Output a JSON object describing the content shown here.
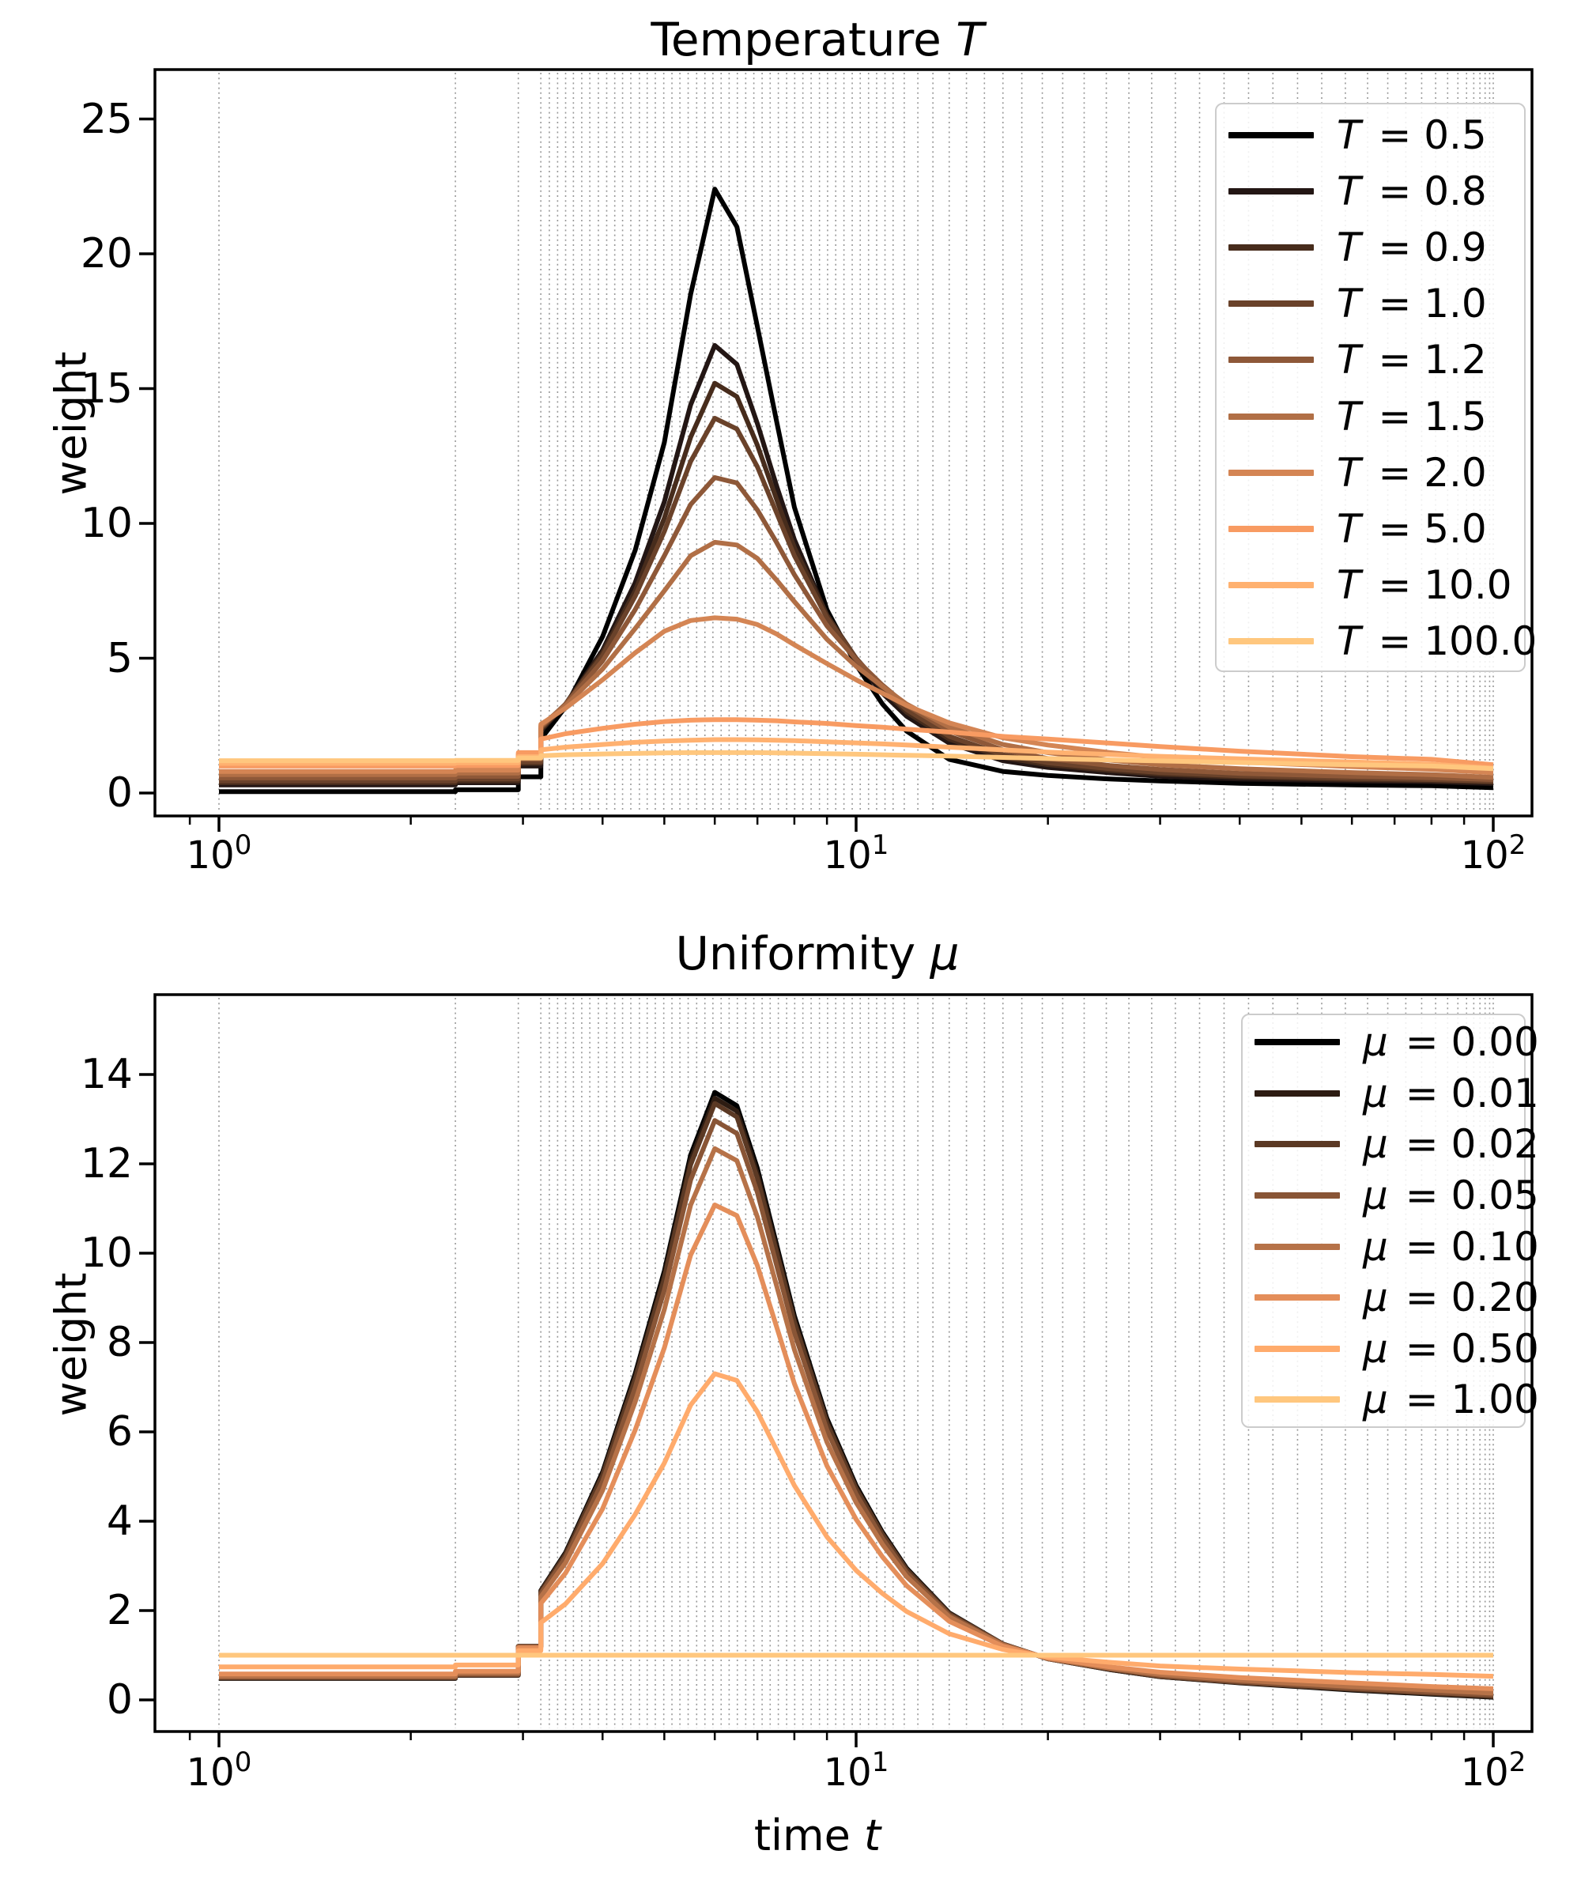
{
  "figure": {
    "background": "#ffffff",
    "grid_color": "#8c8c8c",
    "axis_color": "#000000"
  },
  "chart_data": [
    {
      "type": "line",
      "title_text": "Temperature",
      "title_var": "T",
      "ylabel": "weight",
      "x_scale": "log",
      "xlim": [
        0.79,
        112
      ],
      "ylim": [
        -0.85,
        26.8
      ],
      "grid": "on",
      "legend_position": "upper right",
      "yticks": [
        0,
        5,
        10,
        15,
        20,
        25
      ],
      "xticks": [
        {
          "value": 1,
          "label_base": "10",
          "label_exp": "0"
        },
        {
          "value": 10,
          "label_base": "10",
          "label_exp": "1"
        },
        {
          "value": 100,
          "label_base": "10",
          "label_exp": "2"
        }
      ],
      "x_minor_ticks": [
        0.9,
        2,
        3,
        4,
        5,
        6,
        7,
        8,
        9,
        20,
        30,
        40,
        50,
        60,
        70,
        80,
        90
      ],
      "grid_t": [
        1,
        2.35,
        2.95,
        3.2,
        3.3,
        3.4,
        3.5,
        3.6,
        3.71,
        3.82,
        3.94,
        4.06,
        4.18,
        4.3,
        4.43,
        4.57,
        4.7,
        4.84,
        4.99,
        5.14,
        5.29,
        5.45,
        5.62,
        5.79,
        5.96,
        6.14,
        6.32,
        6.51,
        6.71,
        6.91,
        7.12,
        7.33,
        7.55,
        7.78,
        8.01,
        8.25,
        8.5,
        8.76,
        9.02,
        9.29,
        9.57,
        9.86,
        10.15,
        10.46,
        10.77,
        11.1,
        11.43,
        11.9,
        12.5,
        13.2,
        14.0,
        14.9,
        15.9,
        17.0,
        18.2,
        19.6,
        21.1,
        22.8,
        24.7,
        26.8,
        29.1,
        31.7,
        34.6,
        37.8,
        41.3,
        45.1,
        49.3,
        53.8,
        58.6,
        63.5,
        68.3,
        72.9,
        77.2,
        81.2,
        84.8,
        88.0,
        90.8,
        93.2,
        95.3,
        97.1,
        98.7,
        100
      ],
      "t_samples": [
        1,
        2.35,
        2.35,
        2.95,
        2.95,
        3.2,
        3.2,
        3.5,
        4,
        4.5,
        5,
        5.5,
        6,
        6.5,
        7,
        7.5,
        8,
        9,
        10,
        11,
        12,
        14,
        17,
        20,
        25,
        30,
        40,
        60,
        80,
        100
      ],
      "series": [
        {
          "var": "T",
          "value": "0.5",
          "label": "T = 0.5",
          "color": "#000000",
          "weights": [
            0.05,
            0.05,
            0.12,
            0.12,
            0.6,
            0.6,
            2.0,
            3.2,
            5.8,
            9.0,
            13.0,
            18.5,
            22.4,
            21.0,
            17.3,
            13.8,
            10.6,
            6.8,
            4.75,
            3.3,
            2.3,
            1.25,
            0.8,
            0.65,
            0.52,
            0.45,
            0.36,
            0.3,
            0.27,
            0.2
          ]
        },
        {
          "var": "T",
          "value": "0.8",
          "label": "T = 0.8",
          "color": "#231614",
          "weights": [
            0.3,
            0.3,
            0.38,
            0.38,
            1.0,
            1.0,
            2.3,
            3.3,
            5.3,
            7.8,
            10.8,
            14.4,
            16.6,
            15.9,
            13.7,
            11.4,
            9.4,
            6.6,
            4.9,
            3.7,
            2.85,
            1.85,
            1.2,
            0.95,
            0.75,
            0.62,
            0.52,
            0.45,
            0.42,
            0.35
          ]
        },
        {
          "var": "T",
          "value": "0.9",
          "label": "T = 0.9",
          "color": "#472c1c",
          "weights": [
            0.38,
            0.38,
            0.45,
            0.45,
            1.1,
            1.1,
            2.35,
            3.3,
            5.2,
            7.5,
            10.2,
            13.2,
            15.2,
            14.7,
            12.9,
            10.9,
            9.1,
            6.6,
            5.0,
            3.85,
            3.0,
            2.0,
            1.32,
            1.05,
            0.84,
            0.7,
            0.59,
            0.5,
            0.46,
            0.4
          ]
        },
        {
          "var": "T",
          "value": "1.0",
          "label": "T = 1.0",
          "color": "#6a422a",
          "weights": [
            0.45,
            0.45,
            0.52,
            0.52,
            1.15,
            1.15,
            2.4,
            3.3,
            5.1,
            7.3,
            9.7,
            12.3,
            13.9,
            13.5,
            12.1,
            10.4,
            8.8,
            6.5,
            5.0,
            3.9,
            3.1,
            2.1,
            1.42,
            1.12,
            0.9,
            0.76,
            0.64,
            0.55,
            0.5,
            0.44
          ]
        },
        {
          "var": "T",
          "value": "1.2",
          "label": "T = 1.2",
          "color": "#8e5838",
          "weights": [
            0.56,
            0.56,
            0.62,
            0.62,
            1.25,
            1.25,
            2.45,
            3.3,
            4.9,
            6.8,
            8.8,
            10.7,
            11.7,
            11.5,
            10.5,
            9.3,
            8.1,
            6.2,
            4.95,
            4.0,
            3.25,
            2.3,
            1.6,
            1.28,
            1.02,
            0.87,
            0.73,
            0.62,
            0.57,
            0.5
          ]
        },
        {
          "var": "T",
          "value": "1.5",
          "label": "T = 1.5",
          "color": "#b16f46",
          "weights": [
            0.68,
            0.68,
            0.74,
            0.74,
            1.35,
            1.35,
            2.5,
            3.25,
            4.6,
            6.1,
            7.5,
            8.8,
            9.3,
            9.2,
            8.7,
            7.9,
            7.1,
            5.7,
            4.7,
            3.95,
            3.3,
            2.45,
            1.8,
            1.5,
            1.22,
            1.05,
            0.9,
            0.76,
            0.68,
            0.58
          ]
        },
        {
          "var": "T",
          "value": "2.0",
          "label": "T = 2.0",
          "color": "#d48554",
          "weights": [
            0.8,
            0.8,
            0.85,
            0.85,
            1.45,
            1.45,
            2.55,
            3.15,
            4.2,
            5.2,
            6.0,
            6.4,
            6.5,
            6.45,
            6.25,
            5.9,
            5.5,
            4.8,
            4.2,
            3.7,
            3.25,
            2.6,
            2.05,
            1.78,
            1.5,
            1.32,
            1.15,
            0.98,
            0.88,
            0.75
          ]
        },
        {
          "var": "T",
          "value": "5.0",
          "label": "T = 5.0",
          "color": "#f89b62",
          "weights": [
            1.0,
            1.0,
            1.02,
            1.02,
            1.5,
            1.5,
            2.0,
            2.2,
            2.4,
            2.55,
            2.65,
            2.7,
            2.72,
            2.72,
            2.7,
            2.68,
            2.64,
            2.58,
            2.5,
            2.44,
            2.37,
            2.26,
            2.1,
            2.0,
            1.85,
            1.72,
            1.55,
            1.35,
            1.25,
            1.05
          ]
        },
        {
          "var": "T",
          "value": "10.0",
          "label": "T = 10.0",
          "color": "#ffb170",
          "weights": [
            1.1,
            1.1,
            1.12,
            1.12,
            1.35,
            1.35,
            1.6,
            1.7,
            1.8,
            1.88,
            1.93,
            1.96,
            1.98,
            1.98,
            1.97,
            1.96,
            1.94,
            1.9,
            1.86,
            1.82,
            1.78,
            1.7,
            1.6,
            1.52,
            1.43,
            1.36,
            1.27,
            1.15,
            1.07,
            0.92
          ]
        },
        {
          "var": "T",
          "value": "100.0",
          "label": "T = 100.0",
          "color": "#ffc77e",
          "weights": [
            1.2,
            1.2,
            1.21,
            1.21,
            1.3,
            1.3,
            1.38,
            1.42,
            1.45,
            1.47,
            1.49,
            1.5,
            1.5,
            1.5,
            1.5,
            1.49,
            1.48,
            1.46,
            1.44,
            1.42,
            1.4,
            1.37,
            1.32,
            1.28,
            1.23,
            1.19,
            1.13,
            1.05,
            1.0,
            0.9
          ]
        }
      ]
    },
    {
      "type": "line",
      "title_text": "Uniformity",
      "title_var": "μ",
      "ylabel": "weight",
      "xlabel_text": "time",
      "xlabel_var": "t",
      "x_scale": "log",
      "xlim": [
        0.79,
        112
      ],
      "ylim": [
        -0.7,
        15.8
      ],
      "grid": "on",
      "legend_position": "upper right",
      "yticks": [
        0,
        2,
        4,
        6,
        8,
        10,
        12,
        14
      ],
      "xticks": [
        {
          "value": 1,
          "label_base": "10",
          "label_exp": "0"
        },
        {
          "value": 10,
          "label_base": "10",
          "label_exp": "1"
        },
        {
          "value": 100,
          "label_base": "10",
          "label_exp": "2"
        }
      ],
      "x_minor_ticks": [
        0.9,
        2,
        3,
        4,
        5,
        6,
        7,
        8,
        9,
        20,
        30,
        40,
        50,
        60,
        70,
        80,
        90
      ],
      "grid_t": [
        1,
        2.35,
        2.95,
        3.2,
        3.3,
        3.4,
        3.5,
        3.6,
        3.71,
        3.82,
        3.94,
        4.06,
        4.18,
        4.3,
        4.43,
        4.57,
        4.7,
        4.84,
        4.99,
        5.14,
        5.29,
        5.45,
        5.62,
        5.79,
        5.96,
        6.14,
        6.32,
        6.51,
        6.71,
        6.91,
        7.12,
        7.33,
        7.55,
        7.78,
        8.01,
        8.25,
        8.5,
        8.76,
        9.02,
        9.29,
        9.57,
        9.86,
        10.15,
        10.46,
        10.77,
        11.1,
        11.43,
        11.9,
        12.5,
        13.2,
        14.0,
        14.9,
        15.9,
        17.0,
        18.2,
        19.6,
        21.1,
        22.8,
        24.7,
        26.8,
        29.1,
        31.7,
        34.6,
        37.8,
        41.3,
        45.1,
        49.3,
        53.8,
        58.6,
        63.5,
        68.3,
        72.9,
        77.2,
        81.2,
        84.8,
        88.0,
        90.8,
        93.2,
        95.3,
        97.1,
        98.7,
        100
      ],
      "t_samples": [
        1,
        2.35,
        2.35,
        2.95,
        2.95,
        3.2,
        3.2,
        3.5,
        4,
        4.5,
        5,
        5.5,
        6,
        6.5,
        7,
        7.5,
        8,
        9,
        10,
        11,
        12,
        14,
        17,
        20,
        25,
        30,
        40,
        60,
        80,
        100
      ],
      "series": [
        {
          "var": "μ",
          "value": "0.00",
          "label": "μ = 0.00",
          "color": "#000000",
          "weights": [
            0.48,
            0.48,
            0.55,
            0.55,
            1.2,
            1.2,
            2.45,
            3.3,
            5.1,
            7.3,
            9.6,
            12.2,
            13.6,
            13.3,
            11.9,
            10.2,
            8.6,
            6.3,
            4.8,
            3.75,
            2.95,
            1.95,
            1.25,
            0.92,
            0.68,
            0.52,
            0.38,
            0.22,
            0.13,
            0.06
          ]
        },
        {
          "var": "μ",
          "value": "0.01",
          "label": "μ = 0.01",
          "color": "#2d1c12",
          "weights": [
            0.49,
            0.49,
            0.55,
            0.55,
            1.2,
            1.2,
            2.44,
            3.28,
            5.06,
            7.24,
            9.51,
            12.09,
            13.47,
            13.18,
            11.79,
            10.11,
            8.52,
            6.25,
            4.76,
            3.72,
            2.93,
            1.94,
            1.25,
            0.92,
            0.68,
            0.52,
            0.39,
            0.23,
            0.14,
            0.07
          ]
        },
        {
          "var": "μ",
          "value": "0.02",
          "label": "μ = 0.02",
          "color": "#5b3924",
          "weights": [
            0.49,
            0.49,
            0.56,
            0.56,
            1.2,
            1.2,
            2.42,
            3.25,
            5.02,
            7.17,
            9.43,
            11.98,
            13.35,
            13.05,
            11.68,
            10.02,
            8.45,
            6.19,
            4.72,
            3.7,
            2.91,
            1.93,
            1.25,
            0.92,
            0.69,
            0.53,
            0.39,
            0.24,
            0.15,
            0.08
          ]
        },
        {
          "var": "μ",
          "value": "0.05",
          "label": "μ = 0.05",
          "color": "#895536",
          "weights": [
            0.51,
            0.51,
            0.57,
            0.57,
            1.19,
            1.19,
            2.38,
            3.19,
            4.89,
            6.99,
            9.17,
            11.64,
            12.97,
            12.68,
            11.36,
            9.74,
            8.22,
            6.04,
            4.61,
            3.61,
            2.85,
            1.9,
            1.24,
            0.92,
            0.7,
            0.54,
            0.41,
            0.26,
            0.17,
            0.11
          ]
        },
        {
          "var": "μ",
          "value": "0.10",
          "label": "μ = 0.10",
          "color": "#b67248",
          "weights": [
            0.53,
            0.53,
            0.6,
            0.6,
            1.18,
            1.18,
            2.31,
            3.07,
            4.69,
            6.67,
            8.74,
            11.08,
            12.34,
            12.07,
            10.81,
            9.28,
            7.84,
            5.77,
            4.42,
            3.48,
            2.76,
            1.86,
            1.23,
            0.93,
            0.71,
            0.57,
            0.44,
            0.3,
            0.22,
            0.15
          ]
        },
        {
          "var": "μ",
          "value": "0.20",
          "label": "μ = 0.20",
          "color": "#e48e5a",
          "weights": [
            0.58,
            0.58,
            0.64,
            0.64,
            1.16,
            1.16,
            2.16,
            2.84,
            4.28,
            6.04,
            7.88,
            9.96,
            11.08,
            10.84,
            9.72,
            8.36,
            7.08,
            5.24,
            4.04,
            3.2,
            2.56,
            1.76,
            1.2,
            0.94,
            0.74,
            0.62,
            0.5,
            0.38,
            0.3,
            0.25
          ]
        },
        {
          "var": "μ",
          "value": "0.50",
          "label": "μ = 0.50",
          "color": "#ffab6c",
          "weights": [
            0.74,
            0.74,
            0.78,
            0.78,
            1.1,
            1.1,
            1.73,
            2.15,
            3.05,
            4.15,
            5.3,
            6.6,
            7.3,
            7.15,
            6.45,
            5.6,
            4.8,
            3.65,
            2.9,
            2.38,
            1.98,
            1.48,
            1.13,
            0.96,
            0.84,
            0.76,
            0.69,
            0.61,
            0.57,
            0.53
          ]
        },
        {
          "var": "μ",
          "value": "1.00",
          "label": "μ = 1.00",
          "color": "#ffc77e",
          "weights": [
            1,
            1,
            1,
            1,
            1,
            1,
            1,
            1,
            1,
            1,
            1,
            1,
            1,
            1,
            1,
            1,
            1,
            1,
            1,
            1,
            1,
            1,
            1,
            1,
            1,
            1,
            1,
            1,
            1,
            1
          ]
        }
      ]
    }
  ]
}
